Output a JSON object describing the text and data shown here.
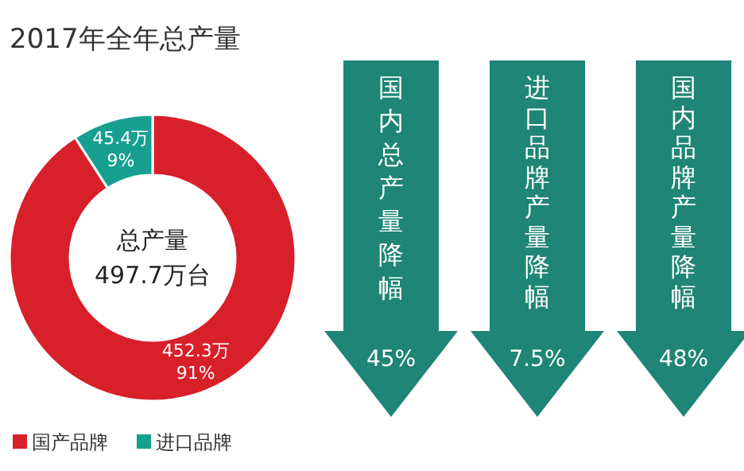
{
  "chart_data": [
    {
      "type": "donut",
      "title": "2017年全年总产量",
      "categories": [
        "国产品牌",
        "进口品牌"
      ],
      "values": [
        452.3,
        45.4
      ],
      "colors": [
        "#d7202a",
        "#17a08f"
      ],
      "value_labels": [
        "452.3万\n91%",
        "45.4万\n9%"
      ],
      "annotations": [
        "总产量\n497.7万台"
      ],
      "legend": "bottom left"
    },
    {
      "type": "other",
      "categories": [
        "国内总产量降幅",
        "进口品牌产量降幅",
        "国内品牌产量降幅"
      ],
      "value_labels": [
        "45%",
        "7.5%",
        "48%"
      ],
      "color": "#1f8576"
    }
  ]
}
